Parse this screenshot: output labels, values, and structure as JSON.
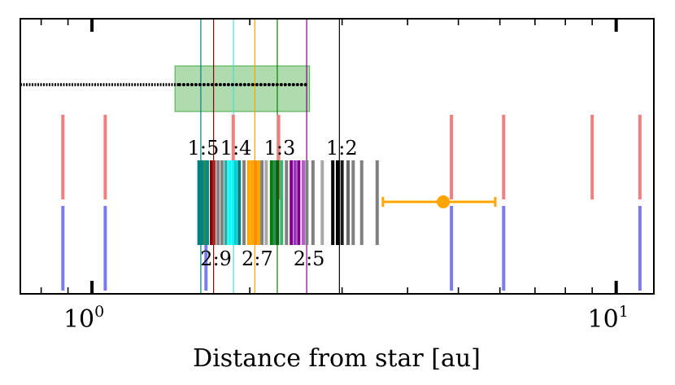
{
  "chart_data": {
    "type": "scatter",
    "xscale": "log",
    "xlim": [
      0.73,
      11.8
    ],
    "xlabel": "Distance from star [au]",
    "ylabel": "",
    "grid": false,
    "major_tick_labels": [
      {
        "value": 1,
        "base": "10",
        "exp": "0"
      },
      {
        "value": 10,
        "base": "10",
        "exp": "1"
      }
    ],
    "minor_ticks": [
      0.8,
      0.9,
      2,
      3,
      4,
      5,
      6,
      7,
      8,
      9
    ],
    "resonance_lines": [
      {
        "ratio": "1:5",
        "x": 1.613,
        "color": "#008080"
      },
      {
        "ratio": "2:9",
        "x": 1.706,
        "color": "#8b0000"
      },
      {
        "ratio": "1:4",
        "x": 1.862,
        "color": "#40e0d0"
      },
      {
        "ratio": "2:7",
        "x": 2.045,
        "color": "#ffa500"
      },
      {
        "ratio": "1:3",
        "x": 2.257,
        "color": "#008000"
      },
      {
        "ratio": "2:5",
        "x": 2.568,
        "color": "#800080"
      },
      {
        "ratio": "1:2",
        "x": 2.965,
        "color": "#000000"
      }
    ],
    "ratio_labels_top": [
      {
        "text": "1:5",
        "x": 1.613
      },
      {
        "text": "1:4",
        "x": 1.862
      },
      {
        "text": "1:3",
        "x": 2.257
      },
      {
        "text": "1:2",
        "x": 2.965
      }
    ],
    "ratio_labels_bottom": [
      {
        "text": "2:9",
        "x": 1.706
      },
      {
        "text": "2:7",
        "x": 2.045
      },
      {
        "text": "2:5",
        "x": 2.568
      }
    ],
    "shaded_region": {
      "x0": 1.44,
      "x1": 2.6,
      "color": "#2ca02c",
      "label": "green band"
    },
    "black_dot_track": {
      "x_start": 0.73,
      "x_end": 2.6,
      "dense_until": 1.47,
      "color": "#000000"
    },
    "red_bars": [
      0.88,
      1.06,
      1.86,
      2.27,
      4.85,
      6.1,
      9.0,
      11.1
    ],
    "blue_bars": [
      0.88,
      1.06,
      1.65,
      4.85,
      6.1,
      11.1
    ],
    "planet": {
      "x": 4.68,
      "xerr_low": 3.59,
      "xerr_high": 5.88,
      "color": "#ffa500"
    },
    "comb_bars": [
      {
        "x": 1.6,
        "color": "#008080"
      },
      {
        "x": 1.62,
        "color": "#008080"
      },
      {
        "x": 1.64,
        "color": "#2e8b57"
      },
      {
        "x": 1.66,
        "color": "#008b8b"
      },
      {
        "x": 1.69,
        "color": "#8b0000"
      },
      {
        "x": 1.71,
        "color": "#a52a2a"
      },
      {
        "x": 1.74,
        "color": "#808080"
      },
      {
        "x": 1.77,
        "color": "#808080"
      },
      {
        "x": 1.8,
        "color": "#20b2aa"
      },
      {
        "x": 1.83,
        "color": "#00ffff"
      },
      {
        "x": 1.86,
        "color": "#00ffff"
      },
      {
        "x": 1.88,
        "color": "#00ced1"
      },
      {
        "x": 1.91,
        "color": "#008080"
      },
      {
        "x": 1.95,
        "color": "#808080"
      },
      {
        "x": 1.99,
        "color": "#ffa500"
      },
      {
        "x": 2.02,
        "color": "#ffa500"
      },
      {
        "x": 2.05,
        "color": "#ff8c00"
      },
      {
        "x": 2.08,
        "color": "#ffa500"
      },
      {
        "x": 2.11,
        "color": "#808080"
      },
      {
        "x": 2.15,
        "color": "#a9a9a9"
      },
      {
        "x": 2.2,
        "color": "#008000"
      },
      {
        "x": 2.23,
        "color": "#2e8b57"
      },
      {
        "x": 2.26,
        "color": "#006400"
      },
      {
        "x": 2.3,
        "color": "#3cb371"
      },
      {
        "x": 2.35,
        "color": "#808080"
      },
      {
        "x": 2.4,
        "color": "#800080"
      },
      {
        "x": 2.44,
        "color": "#9932cc"
      },
      {
        "x": 2.48,
        "color": "#800080"
      },
      {
        "x": 2.53,
        "color": "#ba55d3"
      },
      {
        "x": 2.57,
        "color": "#808080"
      },
      {
        "x": 2.64,
        "color": "#808080"
      },
      {
        "x": 2.75,
        "color": "#a9a9a9"
      },
      {
        "x": 2.88,
        "color": "#000000"
      },
      {
        "x": 2.94,
        "color": "#000000"
      },
      {
        "x": 3.0,
        "color": "#1a1a1a"
      },
      {
        "x": 3.08,
        "color": "#696969"
      },
      {
        "x": 3.15,
        "color": "#808080"
      },
      {
        "x": 3.27,
        "color": "#808080"
      },
      {
        "x": 3.5,
        "color": "#808080"
      }
    ]
  }
}
